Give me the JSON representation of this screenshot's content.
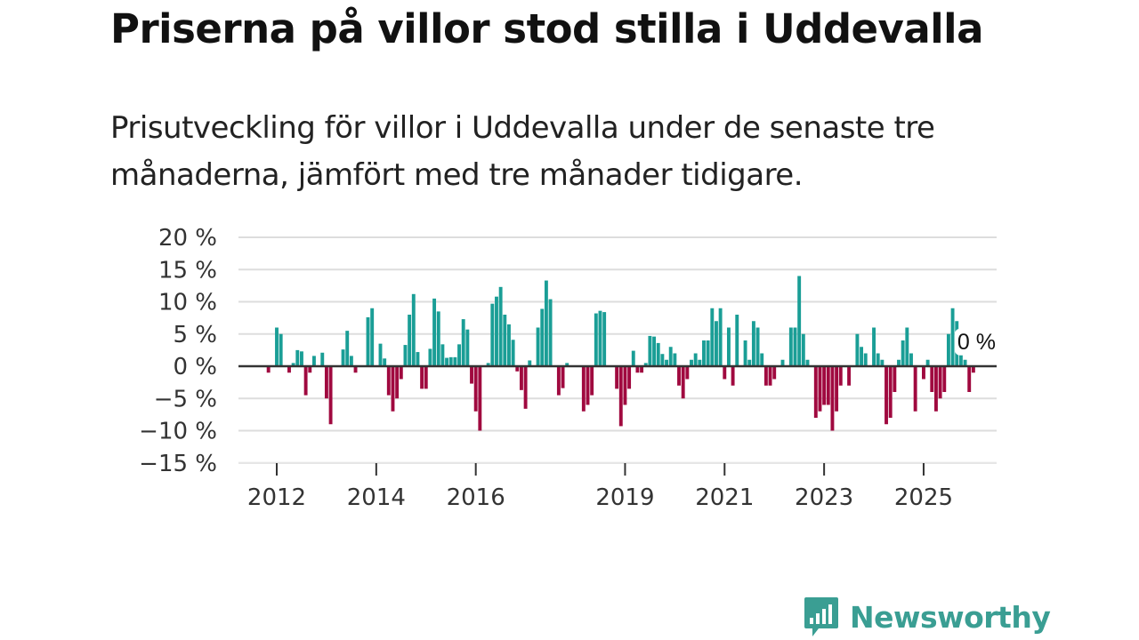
{
  "title": "Priserna på villor stod stilla i Uddevalla",
  "subtitle": "Prisutveckling för villor i Uddevalla under de senaste tre månaderna, jämfört med tre månader tidigare.",
  "brand": "Newsworthy",
  "colors": {
    "positive": "#1a9e96",
    "negative": "#a0093f",
    "grid": "#dddddd",
    "zero": "#333333",
    "brand": "#3a9e93"
  },
  "chart_data": {
    "type": "bar",
    "title": "Priserna på villor stod stilla i Uddevalla",
    "xlabel": "",
    "ylabel": "",
    "ylim": [
      -15,
      20
    ],
    "y_ticks": [
      20,
      15,
      10,
      5,
      0,
      -5,
      -10,
      -15
    ],
    "y_tick_labels": [
      "20 %",
      "15 %",
      "10 %",
      "5 %",
      "0 %",
      "−5 %",
      "−10 %",
      "−15 %"
    ],
    "x_ticks": [
      2012,
      2014,
      2016,
      2019,
      2021,
      2023,
      2025
    ],
    "x_tick_labels": [
      "2012",
      "2014",
      "2016",
      "2019",
      "2021",
      "2023",
      "2025"
    ],
    "start": {
      "year": 2011,
      "month": 11
    },
    "unit": "%",
    "annotation": {
      "label": "0 %",
      "value": 0
    },
    "values": [
      -1,
      0,
      6,
      5,
      0,
      -1,
      0.5,
      2.5,
      2.3,
      -4.5,
      -1,
      1.6,
      0,
      2.1,
      -5,
      -9,
      0,
      0,
      2.6,
      5.5,
      1.6,
      -1,
      0,
      0,
      7.6,
      9,
      0,
      3.5,
      1.2,
      -4.5,
      -7,
      -5,
      -2,
      3.3,
      8,
      11.2,
      2.2,
      -3.5,
      -3.5,
      2.7,
      10.5,
      8.5,
      3.4,
      1.3,
      1.4,
      1.4,
      3.4,
      7.3,
      5.7,
      -2.7,
      -7,
      -10,
      0,
      0.5,
      9.7,
      10.8,
      12.3,
      8,
      6.5,
      4.1,
      -0.8,
      -3.7,
      -6.6,
      0.9,
      0,
      6,
      8.9,
      13.3,
      10.4,
      0,
      -4.5,
      -3.4,
      0.5,
      0,
      0,
      0,
      -7,
      -6,
      -4.5,
      8.2,
      8.6,
      8.4,
      0,
      0,
      -3.5,
      -9.3,
      -6,
      -3.5,
      2.4,
      -1,
      -1,
      0.5,
      4.7,
      4.6,
      3.6,
      1.9,
      1,
      3,
      2,
      -3,
      -5,
      -2,
      1,
      2,
      1,
      4,
      4,
      9,
      7,
      9,
      -2,
      6,
      -3,
      8,
      0,
      4,
      1,
      7,
      6,
      2,
      -3,
      -3,
      -2,
      0,
      1,
      0,
      6,
      6,
      14,
      5,
      1,
      0,
      -8,
      -7,
      -6,
      -6,
      -10,
      -7,
      -3,
      0,
      -3,
      0,
      5,
      3,
      2,
      0,
      6,
      2,
      1,
      -9,
      -8,
      -4,
      1,
      4,
      6,
      2,
      -7,
      0,
      -2,
      1,
      -4,
      -7,
      -5,
      -4,
      5,
      9,
      7,
      2,
      1,
      -4,
      -1
    ]
  }
}
